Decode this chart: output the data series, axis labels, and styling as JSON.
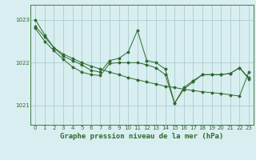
{
  "bg_color": "#d8eef0",
  "line_color": "#2d6a2d",
  "grid_color": "#a0c8c8",
  "title": "Graphe pression niveau de la mer (hPa)",
  "title_fontsize": 6.5,
  "xlim": [
    -0.5,
    23.5
  ],
  "ylim": [
    1020.55,
    1023.35
  ],
  "yticks": [
    1021,
    1022,
    1023
  ],
  "xticks": [
    0,
    1,
    2,
    3,
    4,
    5,
    6,
    7,
    8,
    9,
    10,
    11,
    12,
    13,
    14,
    15,
    16,
    17,
    18,
    19,
    20,
    21,
    22,
    23
  ],
  "s1": [
    1023.0,
    1022.65,
    1022.35,
    1022.15,
    1022.05,
    1021.95,
    1021.82,
    1021.78,
    1022.05,
    1022.1,
    1022.25,
    1022.75,
    1022.05,
    1022.0,
    1021.85,
    1021.05,
    1021.38,
    1021.55,
    1021.72,
    1021.72,
    1021.72,
    1021.75,
    1021.88,
    1021.65
  ],
  "s2": [
    1022.8,
    1022.5,
    1022.28,
    1022.08,
    1021.9,
    1021.78,
    1021.72,
    1021.7,
    1021.98,
    1022.0,
    1022.0,
    1022.0,
    1021.95,
    1021.88,
    1021.72,
    1021.05,
    1021.42,
    1021.58,
    1021.72,
    1021.72,
    1021.72,
    1021.75,
    1021.88,
    1021.62
  ],
  "s3_x": [
    0,
    1,
    2,
    3,
    4,
    5,
    6,
    7,
    8,
    9,
    10,
    11,
    12,
    13,
    14,
    15,
    16,
    17,
    18,
    19,
    20,
    21,
    22,
    23
  ],
  "s3": [
    1022.85,
    1022.6,
    1022.35,
    1022.2,
    1022.1,
    1022.0,
    1021.92,
    1021.85,
    1021.78,
    1021.72,
    1021.65,
    1021.6,
    1021.55,
    1021.5,
    1021.45,
    1021.42,
    1021.38,
    1021.35,
    1021.32,
    1021.3,
    1021.28,
    1021.25,
    1021.22,
    1021.78
  ]
}
